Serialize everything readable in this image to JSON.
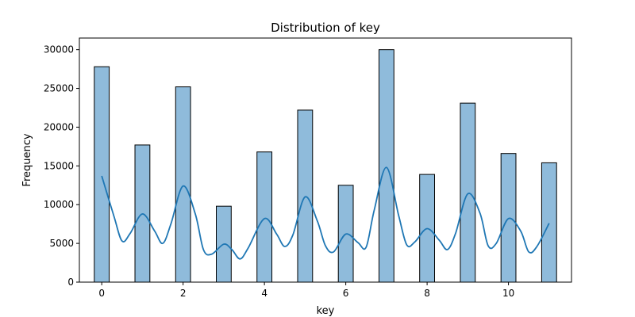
{
  "chart_data": {
    "type": "histogram",
    "title": "Distribution of key",
    "xlabel": "key",
    "ylabel": "Frequency",
    "xlim": [
      -0.55,
      11.55
    ],
    "ylim": [
      0,
      31500
    ],
    "xticks": [
      0,
      2,
      4,
      6,
      8,
      10
    ],
    "yticks": [
      0,
      5000,
      10000,
      15000,
      20000,
      25000,
      30000
    ],
    "bin_width": 0.3667,
    "bars": [
      {
        "key": 0,
        "frequency": 27800
      },
      {
        "key": 1,
        "frequency": 17700
      },
      {
        "key": 2,
        "frequency": 25200
      },
      {
        "key": 3,
        "frequency": 9800
      },
      {
        "key": 4,
        "frequency": 16800
      },
      {
        "key": 5,
        "frequency": 22200
      },
      {
        "key": 6,
        "frequency": 12500
      },
      {
        "key": 7,
        "frequency": 30000
      },
      {
        "key": 8,
        "frequency": 13900
      },
      {
        "key": 9,
        "frequency": 23100
      },
      {
        "key": 10,
        "frequency": 16600
      },
      {
        "key": 11,
        "frequency": 15400
      }
    ],
    "kde": {
      "x": [
        0,
        0.3,
        0.5,
        0.7,
        1.0,
        1.3,
        1.5,
        1.7,
        2.0,
        2.3,
        2.5,
        2.7,
        3.0,
        3.2,
        3.4,
        3.6,
        4.0,
        4.3,
        4.5,
        4.7,
        5.0,
        5.3,
        5.5,
        5.7,
        6.0,
        6.3,
        6.5,
        6.7,
        7.0,
        7.3,
        7.5,
        7.7,
        8.0,
        8.3,
        8.5,
        8.7,
        9.0,
        9.3,
        9.5,
        9.7,
        10.0,
        10.3,
        10.5,
        10.7,
        11.0
      ],
      "y": [
        13700,
        8500,
        5300,
        6300,
        8800,
        6600,
        5000,
        7500,
        12400,
        8800,
        4200,
        3600,
        4900,
        4200,
        3000,
        4400,
        8200,
        6200,
        4600,
        6100,
        11000,
        7900,
        4700,
        3900,
        6200,
        5100,
        4500,
        9300,
        14800,
        8600,
        4800,
        5200,
        6900,
        5400,
        4200,
        6300,
        11400,
        8900,
        4700,
        5000,
        8200,
        6600,
        3900,
        4600,
        7600
      ]
    },
    "bar_color": "#8fbbdb",
    "bar_edge": "#000000",
    "kde_color": "#1f77b4",
    "grid": false,
    "legend": "none"
  }
}
